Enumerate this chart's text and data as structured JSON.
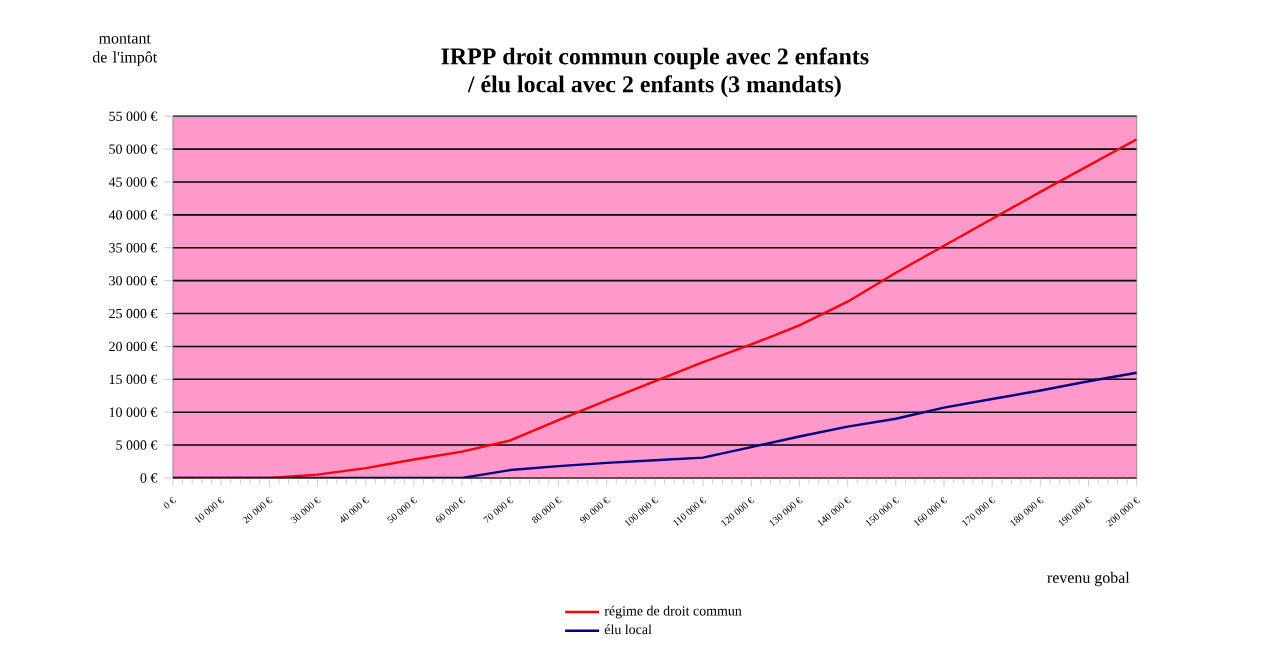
{
  "chart_data": {
    "type": "line",
    "title": "IRPP droit commun couple avec 2 enfants\n/ élu local avec 2 enfants (3 mandats)",
    "xlabel": "revenu gobal",
    "ylabel": "montant de l'impôt",
    "x": [
      0,
      10000,
      20000,
      30000,
      40000,
      50000,
      60000,
      70000,
      80000,
      90000,
      100000,
      110000,
      120000,
      130000,
      140000,
      150000,
      160000,
      170000,
      180000,
      190000,
      200000
    ],
    "series": [
      {
        "name": "régime de droit commun",
        "color": "#ff0000",
        "values": [
          0,
          0,
          0,
          500,
          1500,
          2800,
          4000,
          5700,
          8800,
          11800,
          14700,
          17600,
          20300,
          23200,
          26800,
          31200,
          35300,
          39400,
          43500,
          47500,
          51500
        ]
      },
      {
        "name": "élu local",
        "color": "#000080",
        "values": [
          0,
          0,
          0,
          0,
          0,
          0,
          0,
          1200,
          1800,
          2300,
          2700,
          3100,
          4700,
          6300,
          7800,
          9000,
          10700,
          12000,
          13300,
          14700,
          16000
        ]
      }
    ],
    "xlim": [
      0,
      200000
    ],
    "xticks": [
      {
        "value": 0,
        "label": "0 €"
      },
      {
        "value": 10000,
        "label": "10 000 €"
      },
      {
        "value": 20000,
        "label": "20 000 €"
      },
      {
        "value": 30000,
        "label": "30 000 €"
      },
      {
        "value": 40000,
        "label": "40 000 €"
      },
      {
        "value": 50000,
        "label": "50 000 €"
      },
      {
        "value": 60000,
        "label": "60 000 €"
      },
      {
        "value": 70000,
        "label": "70 000 €"
      },
      {
        "value": 80000,
        "label": "80 000 €"
      },
      {
        "value": 90000,
        "label": "90 000 €"
      },
      {
        "value": 100000,
        "label": "100 000 €"
      },
      {
        "value": 110000,
        "label": "110 000 €"
      },
      {
        "value": 120000,
        "label": "120 000 €"
      },
      {
        "value": 130000,
        "label": "130 000 €"
      },
      {
        "value": 140000,
        "label": "140 000 €"
      },
      {
        "value": 150000,
        "label": "150 000 €"
      },
      {
        "value": 160000,
        "label": "160 000 €"
      },
      {
        "value": 170000,
        "label": "170 000 €"
      },
      {
        "value": 180000,
        "label": "180 000 €"
      },
      {
        "value": 190000,
        "label": "190 000 €"
      },
      {
        "value": 200000,
        "label": "200 000 €"
      }
    ],
    "ylim": [
      0,
      55000
    ],
    "yticks": [
      {
        "value": 0,
        "label": "0 €"
      },
      {
        "value": 5000,
        "label": "5 000 €"
      },
      {
        "value": 10000,
        "label": "10 000 €"
      },
      {
        "value": 15000,
        "label": "15 000 €"
      },
      {
        "value": 20000,
        "label": "20 000 €"
      },
      {
        "value": 25000,
        "label": "25 000 €"
      },
      {
        "value": 30000,
        "label": "30 000 €"
      },
      {
        "value": 35000,
        "label": "35 000 €"
      },
      {
        "value": 40000,
        "label": "40 000 €"
      },
      {
        "value": 45000,
        "label": "45 000 €"
      },
      {
        "value": 50000,
        "label": "50 000 €"
      },
      {
        "value": 55000,
        "label": "55 000 €"
      }
    ],
    "grid": "y",
    "legend": "bottom",
    "marker": "none",
    "line_style": "solid"
  }
}
